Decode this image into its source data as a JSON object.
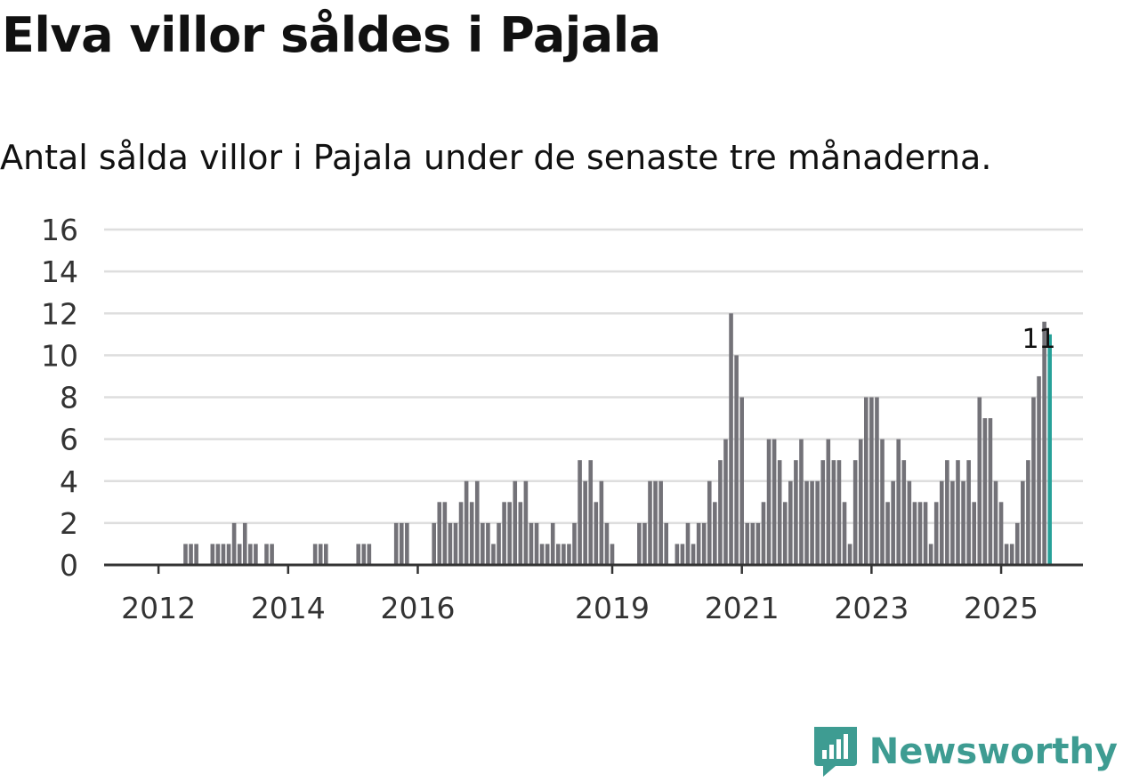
{
  "title": "Elva villor såldes i Pajala",
  "subtitle": "Antal sålda villor i Pajala under de senaste tre månaderna.",
  "brand": {
    "name": "Newsworthy",
    "icon": "bar-chart-pin-icon"
  },
  "colors": {
    "bar": "#737278",
    "highlight": "#27a199",
    "grid": "#dedede",
    "axis": "#333333",
    "brand": "#3e9c92"
  },
  "chart_data": {
    "type": "bar",
    "title": "Elva villor såldes i Pajala",
    "xlabel": "",
    "ylabel": "",
    "ylim": [
      0,
      16
    ],
    "y_ticks": [
      0,
      2,
      4,
      6,
      8,
      10,
      12,
      14,
      16
    ],
    "x_ticks": [
      "2012",
      "2014",
      "2016",
      "2019",
      "2021",
      "2023",
      "2025"
    ],
    "x_tick_months": [
      9,
      33,
      57,
      93,
      117,
      141,
      165
    ],
    "grid": true,
    "legend": "none",
    "series": [
      {
        "name": "Antal sålda villor (senaste tre månaderna)",
        "start_month_index": 0,
        "values": [
          0,
          0,
          0,
          0,
          0,
          0,
          0,
          0,
          0,
          0,
          0,
          0,
          0,
          0,
          1,
          1,
          1,
          0,
          0,
          1,
          1,
          1,
          1,
          2,
          1,
          2,
          1,
          1,
          0,
          1,
          1,
          0,
          0,
          0,
          0,
          0,
          0,
          0,
          1,
          1,
          1,
          0,
          0,
          0,
          0,
          0,
          1,
          1,
          1,
          0,
          0,
          0,
          0,
          2,
          2,
          2,
          0,
          0,
          0,
          0,
          2,
          3,
          3,
          2,
          2,
          3,
          4,
          3,
          4,
          2,
          2,
          1,
          2,
          3,
          3,
          4,
          3,
          4,
          2,
          2,
          1,
          1,
          2,
          1,
          1,
          1,
          2,
          5,
          4,
          5,
          3,
          4,
          2,
          1,
          0,
          0,
          0,
          0,
          2,
          2,
          4,
          4,
          4,
          2,
          0,
          1,
          1,
          2,
          1,
          2,
          2,
          4,
          3,
          5,
          6,
          12,
          10,
          8,
          2,
          2,
          2,
          3,
          6,
          6,
          5,
          3,
          4,
          5,
          6,
          4,
          4,
          4,
          5,
          6,
          5,
          5,
          3,
          1,
          5,
          6,
          8,
          8,
          8,
          6,
          3,
          4,
          6,
          5,
          4,
          3,
          3,
          3,
          1,
          3,
          4,
          5,
          4,
          5,
          4,
          5,
          3,
          8,
          7,
          7,
          4,
          3,
          1,
          1,
          2,
          4,
          5,
          8,
          9,
          11.6,
          11
        ]
      }
    ],
    "annotations": [
      {
        "text": "11",
        "month_index": 172
      }
    ]
  }
}
